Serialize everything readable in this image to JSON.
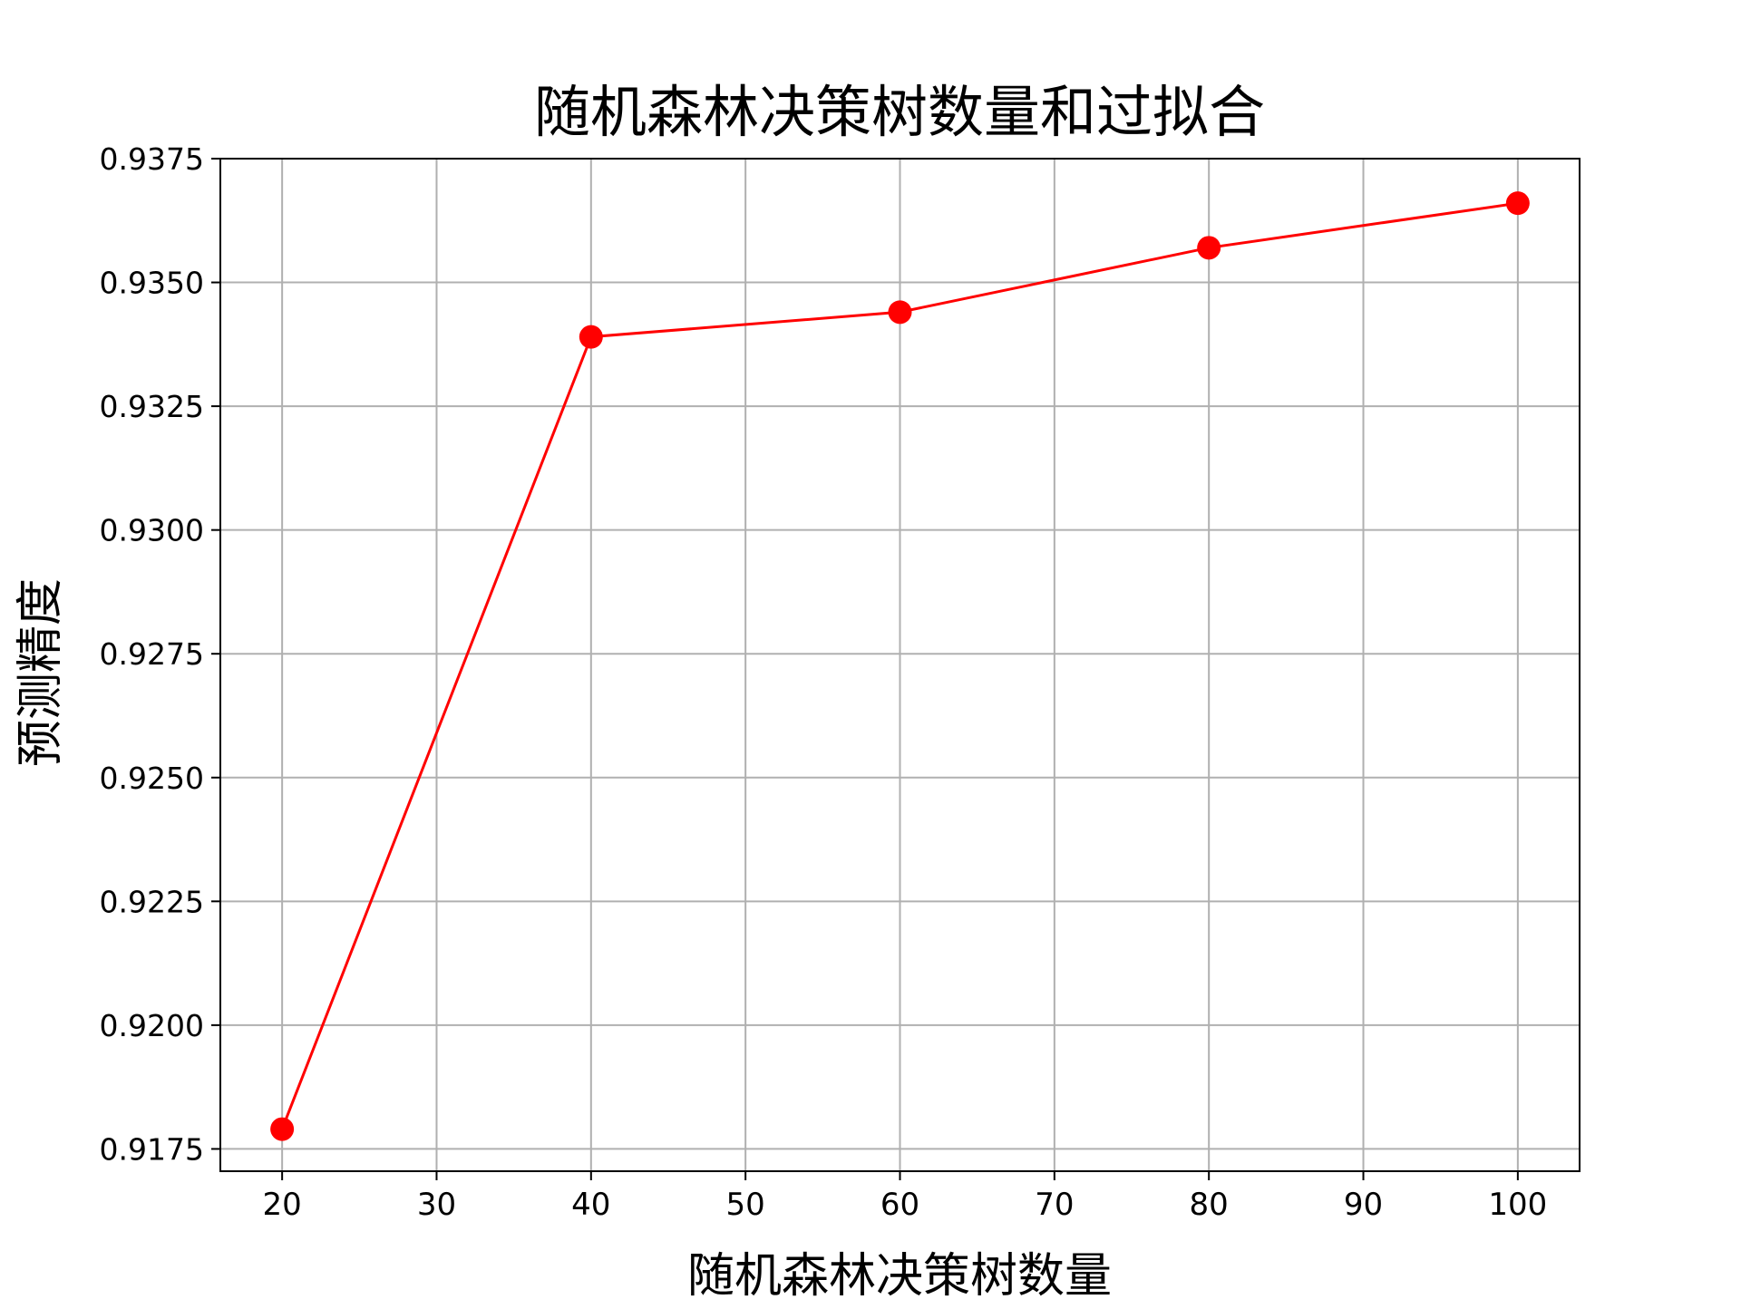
{
  "chart_data": {
    "type": "line",
    "title": "随机森林决策树数量和过拟合",
    "xlabel": "随机森林决策树数量",
    "ylabel": "预测精度",
    "x": [
      20,
      40,
      60,
      80,
      100
    ],
    "series": [
      {
        "values": [
          0.9179,
          0.9339,
          0.9344,
          0.9357,
          0.9366
        ]
      }
    ],
    "xlim": [
      16,
      104
    ],
    "ylim": [
      0.91705,
      0.9375
    ],
    "x_ticks": [
      "20",
      "30",
      "40",
      "50",
      "60",
      "70",
      "80",
      "90",
      "100"
    ],
    "y_ticks": [
      "0.9175",
      "0.9200",
      "0.9225",
      "0.9250",
      "0.9275",
      "0.9300",
      "0.9325",
      "0.9350",
      "0.9375"
    ],
    "grid": true,
    "line_color": "#ff0000",
    "marker": "circle"
  }
}
